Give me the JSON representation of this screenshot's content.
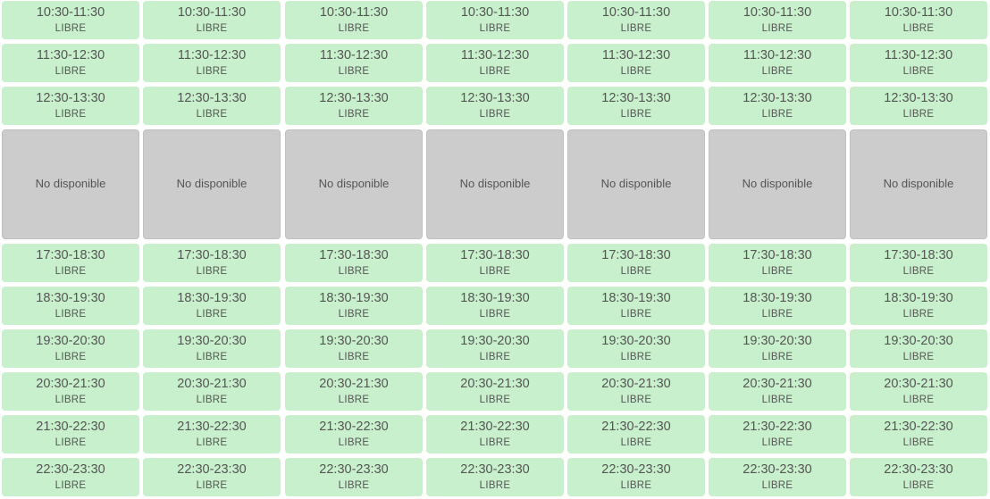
{
  "day_columns": 7,
  "colors": {
    "libre_bg": "#c8f0cc",
    "unavailable_bg": "#cccccc",
    "text": "#555555"
  },
  "slots": [
    {
      "type": "libre",
      "time": "10:30-11:30",
      "status": "LIBRE"
    },
    {
      "type": "libre",
      "time": "11:30-12:30",
      "status": "LIBRE"
    },
    {
      "type": "libre",
      "time": "12:30-13:30",
      "status": "LIBRE"
    },
    {
      "type": "unavailable",
      "label": "No disponible"
    },
    {
      "type": "libre",
      "time": "17:30-18:30",
      "status": "LIBRE"
    },
    {
      "type": "libre",
      "time": "18:30-19:30",
      "status": "LIBRE"
    },
    {
      "type": "libre",
      "time": "19:30-20:30",
      "status": "LIBRE"
    },
    {
      "type": "libre",
      "time": "20:30-21:30",
      "status": "LIBRE"
    },
    {
      "type": "libre",
      "time": "21:30-22:30",
      "status": "LIBRE"
    },
    {
      "type": "libre",
      "time": "22:30-23:30",
      "status": "LIBRE"
    }
  ]
}
